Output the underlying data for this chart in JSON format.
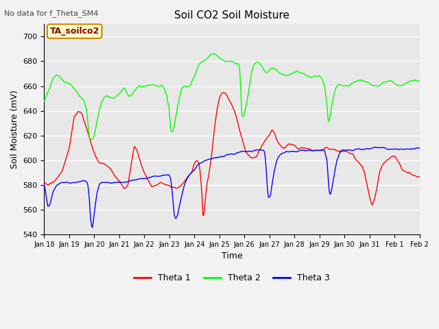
{
  "title": "Soil CO2 Soil Moisture",
  "subtitle": "No data for f_Theta_SM4",
  "ylabel": "Soil Moisture (mV)",
  "xlabel": "Time",
  "ylim": [
    540,
    710
  ],
  "yticks": [
    540,
    560,
    580,
    600,
    620,
    640,
    660,
    680,
    700
  ],
  "xtick_labels": [
    "Jan 18",
    "Jan 19",
    "Jan 20",
    "Jan 21",
    "Jan 22",
    "Jan 23",
    "Jan 24",
    "Jan 25",
    "Jan 26",
    "Jan 27",
    "Jan 28",
    "Jan 29",
    "Jan 30",
    "Jan 31",
    "Feb 1",
    "Feb 2"
  ],
  "annotation_box": "TA_soilco2",
  "colors": {
    "theta1": "#ff0000",
    "theta2": "#00ff00",
    "theta3": "#0000ff",
    "background": "#e8e8e8",
    "grid": "#ffffff",
    "annotation_bg": "#ffffcc",
    "annotation_border": "#cc8800"
  },
  "legend_labels": [
    "Theta 1",
    "Theta 2",
    "Theta 3"
  ]
}
